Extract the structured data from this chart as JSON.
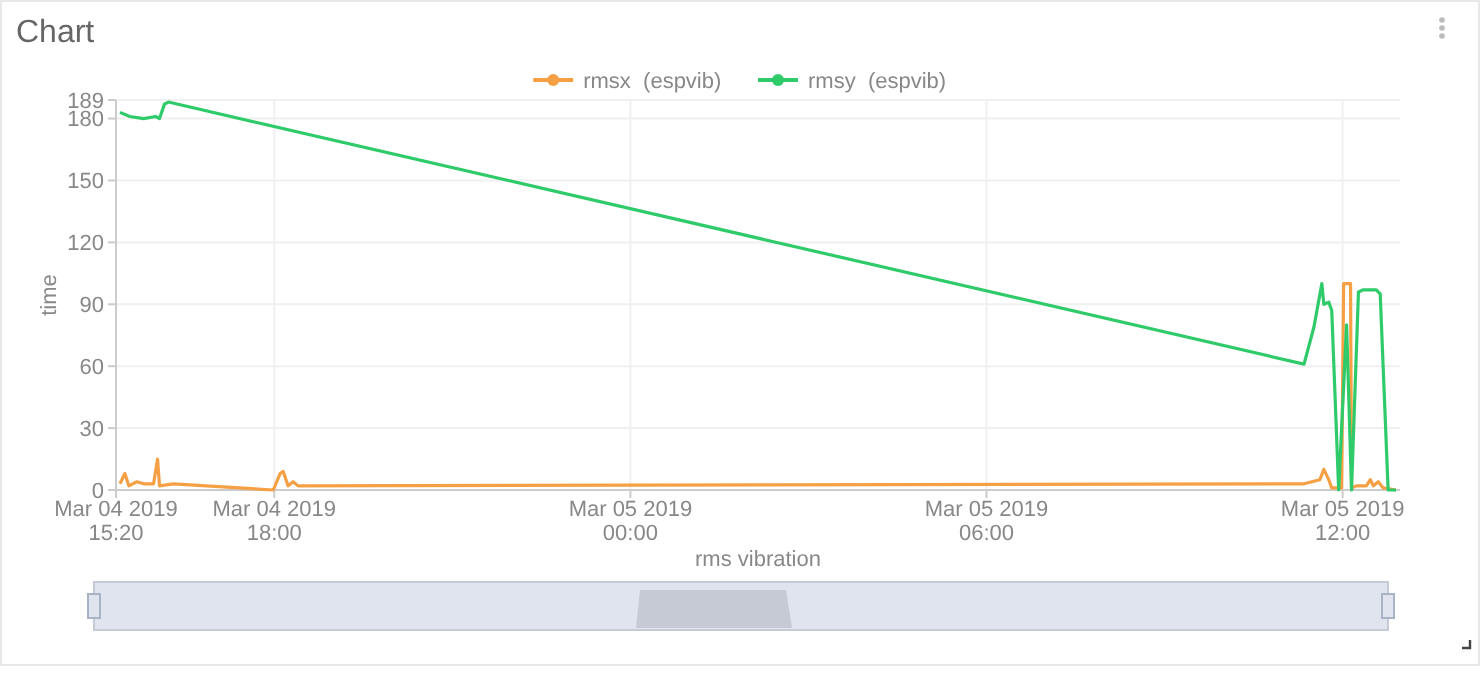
{
  "chart_data": {
    "type": "line",
    "title": "Chart",
    "xlabel": "rms vibration",
    "ylabel": "time",
    "legend": "top",
    "grid": true,
    "line_style": "solid",
    "xlim": [
      "2019-03-04T15:20",
      "2019-03-05T12:58"
    ],
    "xticks": [
      {
        "value": "2019-03-04T15:20",
        "label": "Mar 04 2019\n15:20"
      },
      {
        "value": "2019-03-04T18:00",
        "label": "Mar 04 2019\n18:00"
      },
      {
        "value": "2019-03-05T00:00",
        "label": "Mar 05 2019\n00:00"
      },
      {
        "value": "2019-03-05T06:00",
        "label": "Mar 05 2019\n06:00"
      },
      {
        "value": "2019-03-05T12:00",
        "label": "Mar 05 2019\n12:00"
      }
    ],
    "ylim": [
      0,
      189
    ],
    "yticks": [
      0,
      30,
      60,
      90,
      120,
      150,
      180,
      189
    ],
    "series": [
      {
        "name": "rmsx  (espvib)",
        "color": "#f5a045",
        "x": [
          "2019-03-04T15:24",
          "2019-03-04T15:29",
          "2019-03-04T15:33",
          "2019-03-04T15:41",
          "2019-03-04T15:48",
          "2019-03-04T15:58",
          "2019-03-04T16:02",
          "2019-03-04T16:04",
          "2019-03-04T16:18",
          "2019-03-04T17:59",
          "2019-03-04T18:06",
          "2019-03-04T18:09",
          "2019-03-04T18:14",
          "2019-03-04T18:19",
          "2019-03-04T18:24",
          "2019-03-05T11:21",
          "2019-03-05T11:37",
          "2019-03-05T11:41",
          "2019-03-05T11:46",
          "2019-03-05T11:49",
          "2019-03-05T11:59",
          "2019-03-05T12:01",
          "2019-03-05T12:08",
          "2019-03-05T12:09",
          "2019-03-05T12:14",
          "2019-03-05T12:24",
          "2019-03-05T12:28",
          "2019-03-05T12:31",
          "2019-03-05T12:36",
          "2019-03-05T12:41",
          "2019-03-05T12:54"
        ],
        "values": [
          3,
          8,
          2,
          4,
          3,
          3,
          15,
          2,
          3,
          0,
          8,
          9,
          2,
          4,
          2,
          3,
          5,
          10,
          5,
          1,
          1,
          100,
          100,
          1,
          2,
          2,
          5,
          2,
          4,
          1,
          0
        ]
      },
      {
        "name": "rmsy  (espvib)",
        "color": "#2fcb6b",
        "x": [
          "2019-03-04T15:24",
          "2019-03-04T15:34",
          "2019-03-04T15:48",
          "2019-03-04T16:00",
          "2019-03-04T16:04",
          "2019-03-04T16:09",
          "2019-03-04T16:13",
          "2019-03-05T11:21",
          "2019-03-05T11:31",
          "2019-03-05T11:39",
          "2019-03-05T11:41",
          "2019-03-05T11:46",
          "2019-03-05T11:49",
          "2019-03-05T11:56",
          "2019-03-05T12:04",
          "2019-03-05T12:09",
          "2019-03-05T12:16",
          "2019-03-05T12:21",
          "2019-03-05T12:34",
          "2019-03-05T12:38",
          "2019-03-05T12:46",
          "2019-03-05T12:54"
        ],
        "values": [
          183,
          181,
          180,
          181,
          180,
          187,
          188,
          61,
          79,
          100,
          90,
          91,
          87,
          0,
          80,
          0,
          96,
          97,
          97,
          95,
          0,
          0
        ]
      }
    ]
  }
}
